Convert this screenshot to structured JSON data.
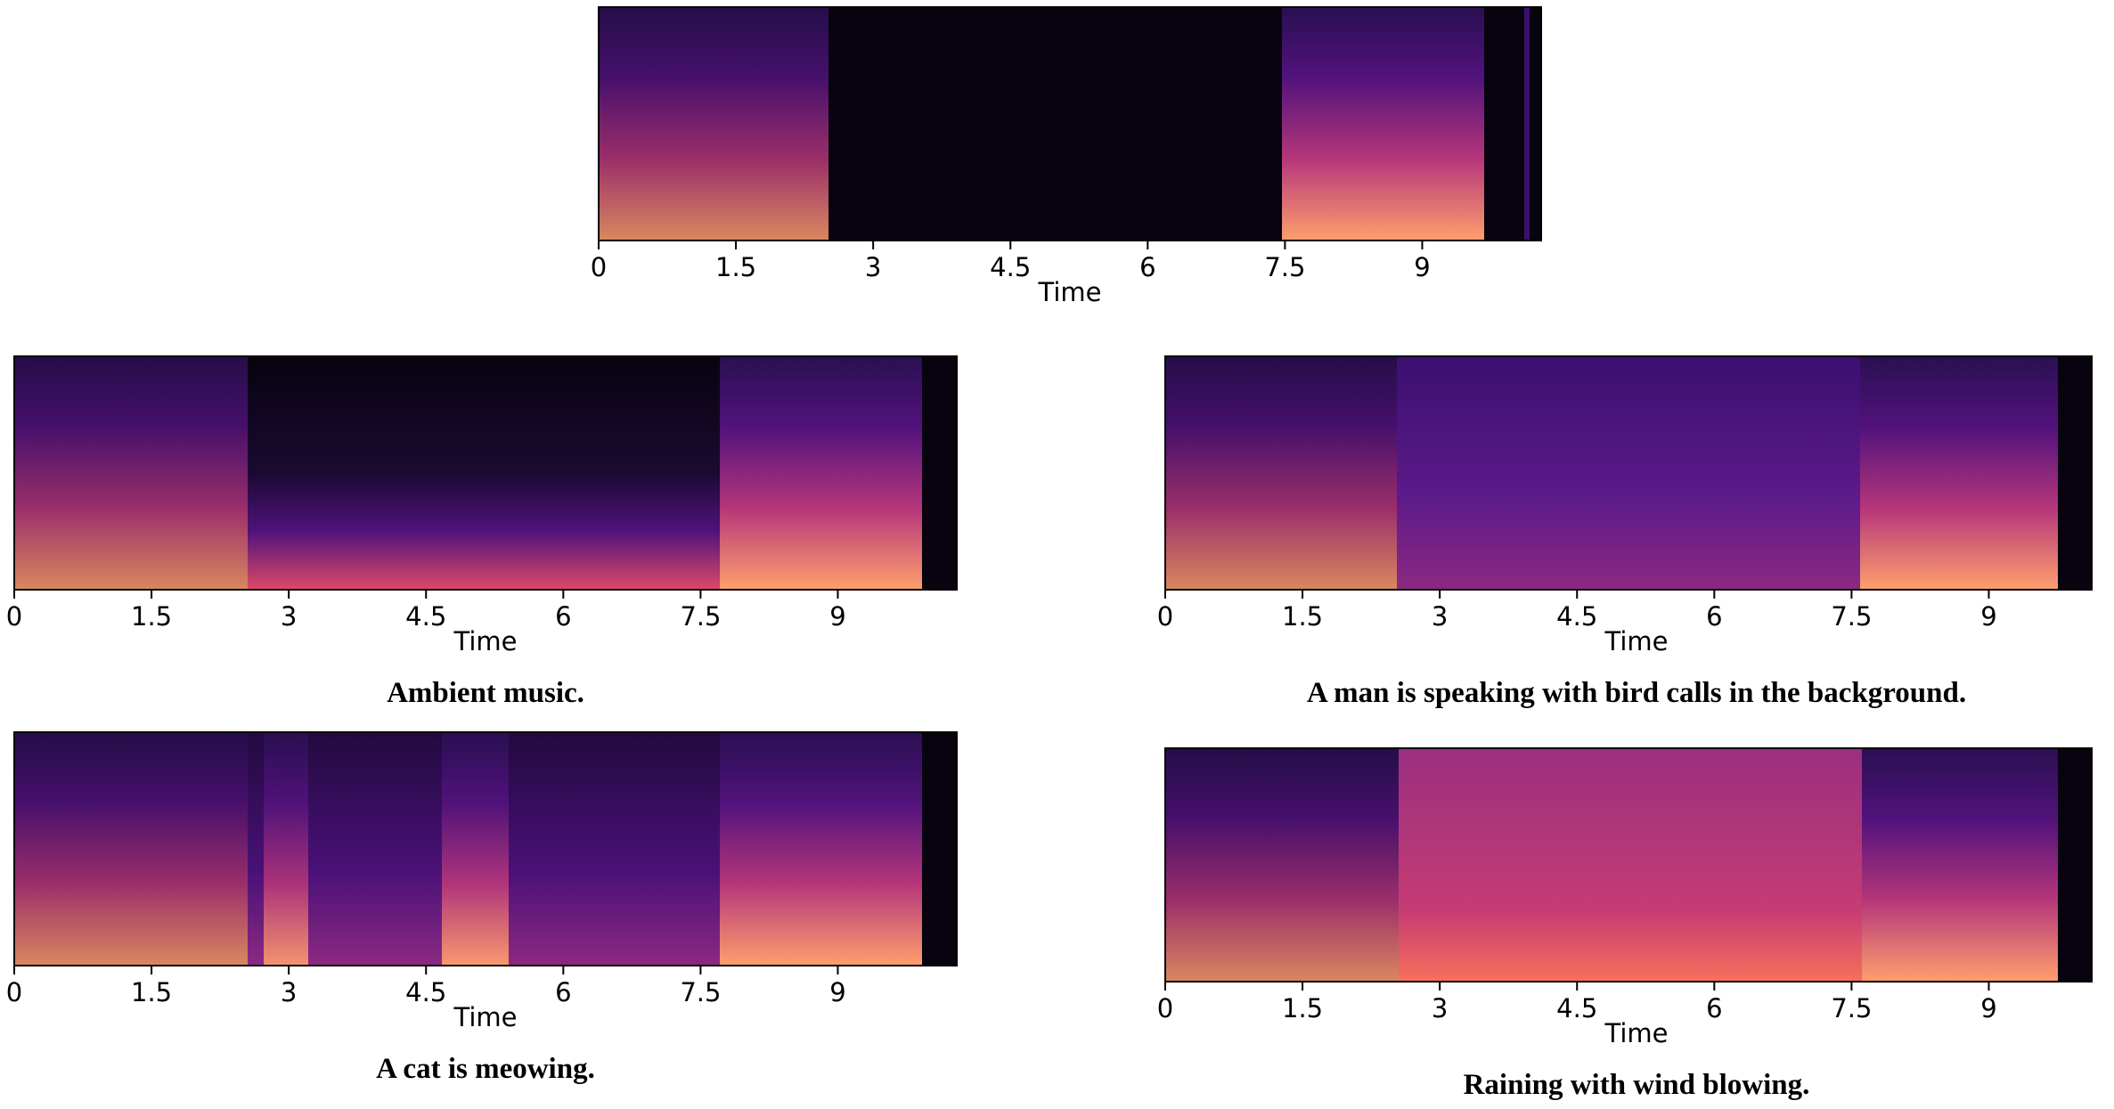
{
  "figure": {
    "panels": [
      {
        "id": "original",
        "caption": "",
        "xlabel": "Time",
        "xticks": [
          "0",
          "1.5",
          "3",
          "4.5",
          "6",
          "7.5",
          "9"
        ],
        "xlim": [
          0,
          10.3
        ]
      },
      {
        "id": "ambient-music",
        "caption": "Ambient music.",
        "xlabel": "Time",
        "xticks": [
          "0",
          "1.5",
          "3",
          "4.5",
          "6",
          "7.5",
          "9"
        ],
        "xlim": [
          0,
          10.3
        ]
      },
      {
        "id": "speaking-bird-calls",
        "caption": "A man is speaking with bird calls in the background.",
        "xlabel": "Time",
        "xticks": [
          "0",
          "1.5",
          "3",
          "4.5",
          "6",
          "7.5",
          "9"
        ],
        "xlim": [
          0,
          10.3
        ]
      },
      {
        "id": "cat-meowing",
        "caption": "A cat is meowing.",
        "xlabel": "Time",
        "xticks": [
          "0",
          "1.5",
          "3",
          "4.5",
          "6",
          "7.5",
          "9"
        ],
        "xlim": [
          0,
          10.3
        ]
      },
      {
        "id": "rain-wind",
        "caption": "Raining with wind blowing.",
        "xlabel": "Time",
        "xticks": [
          "0",
          "1.5",
          "3",
          "4.5",
          "6",
          "7.5",
          "9"
        ],
        "xlim": [
          0,
          10.3
        ]
      }
    ],
    "colors": {
      "silence": "#08030f",
      "low": "#3b0f70",
      "mid": "#8c2981",
      "high": "#de4968",
      "peak": "#fe9f6d"
    }
  }
}
